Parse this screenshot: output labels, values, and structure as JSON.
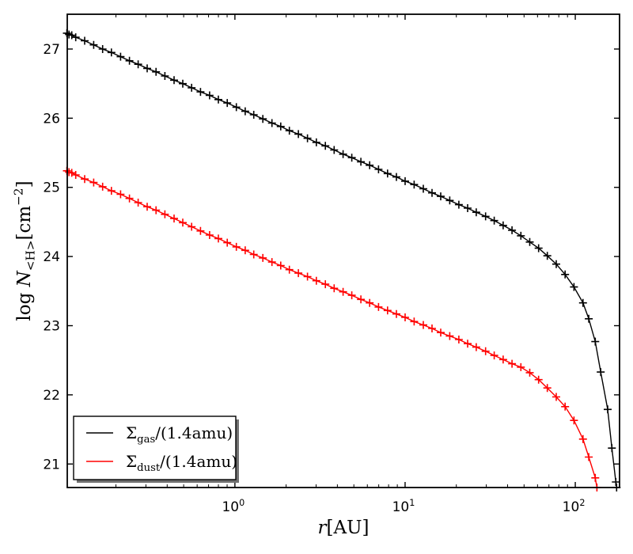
{
  "figure": {
    "background": "#ffffff",
    "frame_color": "#000000",
    "tick_label_color": "#000000"
  },
  "chart_data": {
    "type": "line",
    "x_scale": "log",
    "y_scale": "linear",
    "grid": false,
    "title": "",
    "x_range": [
      0.1035,
      182.0
    ],
    "y_range": [
      20.66,
      27.503
    ],
    "xlabel_parts": [
      {
        "t": "r",
        "style": "italic"
      },
      {
        "t": "[AU]",
        "style": "roman"
      }
    ],
    "ylabel_parts": [
      {
        "t": "log ",
        "style": "roman"
      },
      {
        "t": "N",
        "style": "italic"
      },
      {
        "t": "<H>",
        "style": "sub"
      },
      {
        "t": "[cm",
        "style": "roman"
      },
      {
        "t": "−2",
        "style": "sup"
      },
      {
        "t": "]",
        "style": "roman"
      }
    ],
    "y_ticks": [
      {
        "value": 21,
        "label": "21"
      },
      {
        "value": 22,
        "label": "22"
      },
      {
        "value": 23,
        "label": "23"
      },
      {
        "value": 24,
        "label": "24"
      },
      {
        "value": 25,
        "label": "25"
      },
      {
        "value": 26,
        "label": "26"
      },
      {
        "value": 27,
        "label": "27"
      }
    ],
    "x_ticks": [
      {
        "value": 1,
        "parts": [
          {
            "t": "10",
            "style": "roman"
          },
          {
            "t": "0",
            "style": "sup"
          }
        ]
      },
      {
        "value": 10,
        "parts": [
          {
            "t": "10",
            "style": "roman"
          },
          {
            "t": "1",
            "style": "sup"
          }
        ]
      },
      {
        "value": 100,
        "parts": [
          {
            "t": "10",
            "style": "roman"
          },
          {
            "t": "2",
            "style": "sup"
          }
        ]
      }
    ],
    "legend": {
      "position": "lower-left",
      "shadow": true,
      "border_color": "#000000",
      "shadow_color": "#707070",
      "entries": [
        {
          "color": "#000000",
          "label_parts": [
            {
              "t": "Σ",
              "style": "roman"
            },
            {
              "t": "gas",
              "style": "sub"
            },
            {
              "t": "/(1.4amu)",
              "style": "roman"
            }
          ]
        },
        {
          "color": "#ff0000",
          "label_parts": [
            {
              "t": "Σ",
              "style": "roman"
            },
            {
              "t": "dust",
              "style": "sub"
            },
            {
              "t": "/(1.4amu)",
              "style": "roman"
            }
          ]
        }
      ]
    },
    "series": [
      {
        "name": "gas-column-density",
        "color": "#000000",
        "marker": "plus",
        "x_unit": "AU",
        "y_unit": "log10 cm^-2",
        "points": [
          [
            0.103,
            27.23
          ],
          [
            0.106,
            27.21
          ],
          [
            0.11,
            27.2
          ],
          [
            0.116,
            27.17
          ],
          [
            0.131,
            27.12
          ],
          [
            0.148,
            27.06
          ],
          [
            0.167,
            27.0
          ],
          [
            0.188,
            26.95
          ],
          [
            0.213,
            26.89
          ],
          [
            0.24,
            26.83
          ],
          [
            0.27,
            26.78
          ],
          [
            0.305,
            26.72
          ],
          [
            0.344,
            26.67
          ],
          [
            0.388,
            26.61
          ],
          [
            0.439,
            26.55
          ],
          [
            0.494,
            26.5
          ],
          [
            0.557,
            26.44
          ],
          [
            0.628,
            26.38
          ],
          [
            0.71,
            26.33
          ],
          [
            0.8,
            26.27
          ],
          [
            0.902,
            26.22
          ],
          [
            1.02,
            26.16
          ],
          [
            1.15,
            26.1
          ],
          [
            1.29,
            26.05
          ],
          [
            1.46,
            25.99
          ],
          [
            1.65,
            25.93
          ],
          [
            1.86,
            25.88
          ],
          [
            2.09,
            25.82
          ],
          [
            2.36,
            25.77
          ],
          [
            2.67,
            25.71
          ],
          [
            3.01,
            25.65
          ],
          [
            3.4,
            25.6
          ],
          [
            3.83,
            25.54
          ],
          [
            4.32,
            25.48
          ],
          [
            4.86,
            25.43
          ],
          [
            5.5,
            25.37
          ],
          [
            6.19,
            25.32
          ],
          [
            6.98,
            25.26
          ],
          [
            7.89,
            25.2
          ],
          [
            8.89,
            25.15
          ],
          [
            10.0,
            25.09
          ],
          [
            11.3,
            25.04
          ],
          [
            12.8,
            24.98
          ],
          [
            14.4,
            24.92
          ],
          [
            16.2,
            24.87
          ],
          [
            18.3,
            24.81
          ],
          [
            20.7,
            24.75
          ],
          [
            23.3,
            24.7
          ],
          [
            26.2,
            24.64
          ],
          [
            29.7,
            24.58
          ],
          [
            33.4,
            24.52
          ],
          [
            37.7,
            24.45
          ],
          [
            42.5,
            24.38
          ],
          [
            47.9,
            24.3
          ],
          [
            54.0,
            24.21
          ],
          [
            60.9,
            24.12
          ],
          [
            68.5,
            24.01
          ],
          [
            77.3,
            23.89
          ],
          [
            87.1,
            23.74
          ],
          [
            98.2,
            23.56
          ],
          [
            111,
            23.33
          ],
          [
            120,
            23.1
          ],
          [
            131,
            22.77
          ],
          [
            141,
            22.33
          ],
          [
            155,
            21.79
          ],
          [
            164,
            21.23
          ],
          [
            173,
            20.74
          ],
          [
            175,
            20.66
          ]
        ]
      },
      {
        "name": "dust-column-density",
        "color": "#ff0000",
        "marker": "plus",
        "x_unit": "AU",
        "y_unit": "log10 cm^-2",
        "points": [
          [
            0.103,
            25.24
          ],
          [
            0.106,
            25.22
          ],
          [
            0.11,
            25.21
          ],
          [
            0.116,
            25.18
          ],
          [
            0.131,
            25.12
          ],
          [
            0.148,
            25.07
          ],
          [
            0.167,
            25.01
          ],
          [
            0.188,
            24.95
          ],
          [
            0.213,
            24.9
          ],
          [
            0.24,
            24.84
          ],
          [
            0.27,
            24.78
          ],
          [
            0.305,
            24.72
          ],
          [
            0.344,
            24.67
          ],
          [
            0.388,
            24.61
          ],
          [
            0.439,
            24.55
          ],
          [
            0.494,
            24.49
          ],
          [
            0.557,
            24.43
          ],
          [
            0.628,
            24.37
          ],
          [
            0.71,
            24.31
          ],
          [
            0.8,
            24.26
          ],
          [
            0.902,
            24.2
          ],
          [
            1.02,
            24.14
          ],
          [
            1.15,
            24.09
          ],
          [
            1.29,
            24.03
          ],
          [
            1.46,
            23.98
          ],
          [
            1.65,
            23.92
          ],
          [
            1.86,
            23.87
          ],
          [
            2.09,
            23.81
          ],
          [
            2.36,
            23.76
          ],
          [
            2.67,
            23.71
          ],
          [
            3.01,
            23.65
          ],
          [
            3.4,
            23.6
          ],
          [
            3.83,
            23.54
          ],
          [
            4.32,
            23.49
          ],
          [
            4.86,
            23.44
          ],
          [
            5.5,
            23.38
          ],
          [
            6.19,
            23.33
          ],
          [
            6.98,
            23.27
          ],
          [
            7.89,
            23.22
          ],
          [
            8.89,
            23.17
          ],
          [
            10.0,
            23.12
          ],
          [
            11.3,
            23.06
          ],
          [
            12.8,
            23.01
          ],
          [
            14.4,
            22.96
          ],
          [
            16.2,
            22.9
          ],
          [
            18.3,
            22.85
          ],
          [
            20.7,
            22.8
          ],
          [
            23.3,
            22.74
          ],
          [
            26.2,
            22.69
          ],
          [
            29.7,
            22.63
          ],
          [
            33.4,
            22.57
          ],
          [
            37.7,
            22.51
          ],
          [
            42.5,
            22.45
          ],
          [
            47.9,
            22.4
          ],
          [
            54.0,
            22.32
          ],
          [
            60.9,
            22.22
          ],
          [
            68.5,
            22.1
          ],
          [
            77.3,
            21.97
          ],
          [
            87.1,
            21.83
          ],
          [
            98.2,
            21.63
          ],
          [
            111,
            21.36
          ],
          [
            120,
            21.1
          ],
          [
            131,
            20.8
          ],
          [
            134,
            20.66
          ]
        ]
      }
    ]
  }
}
